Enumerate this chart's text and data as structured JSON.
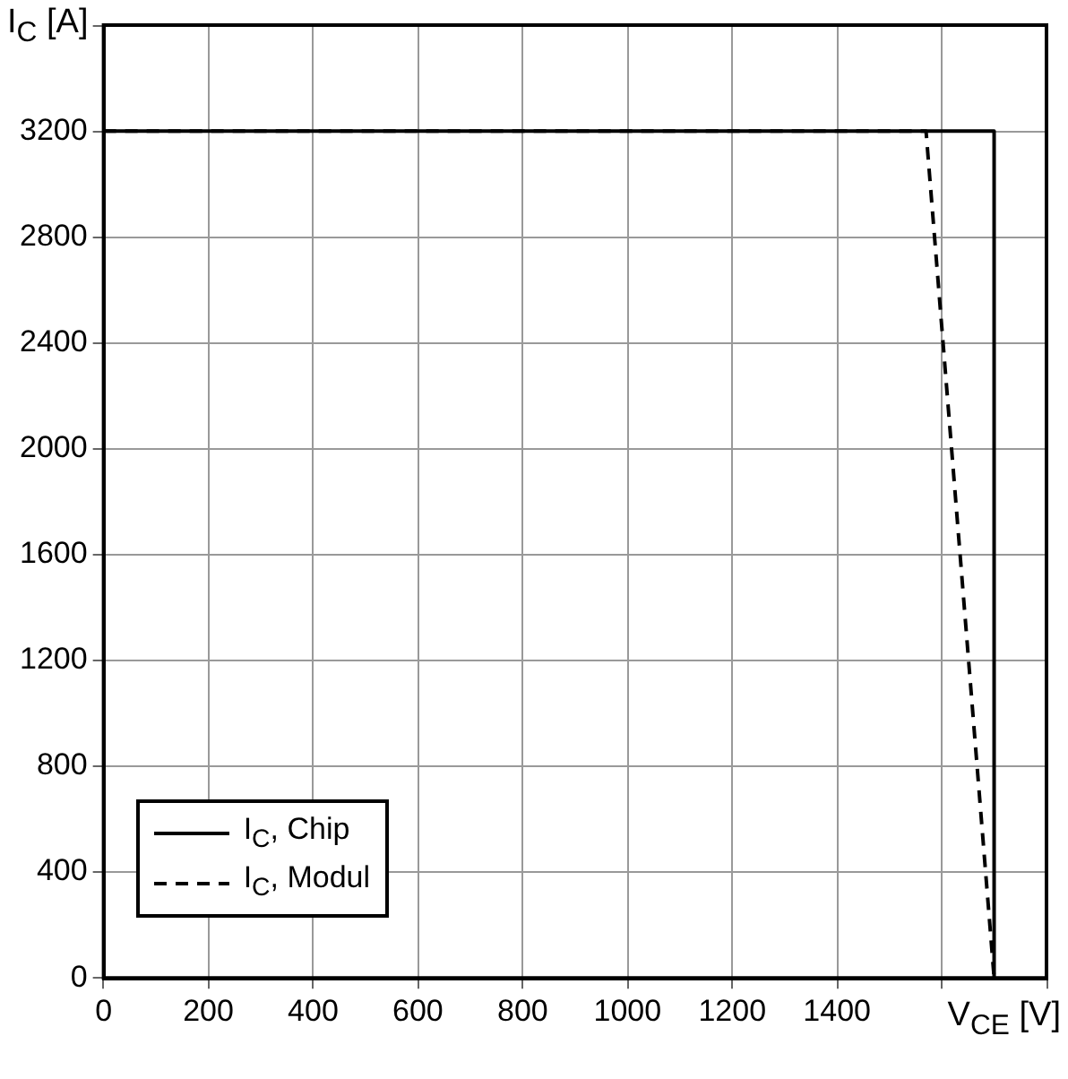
{
  "chart_data": {
    "type": "line",
    "xlabel": "V$_{CE}$ [V]",
    "ylabel": "I$_{C}$ [A]",
    "xlim": [
      0,
      1800
    ],
    "xticks": [
      0,
      200,
      400,
      600,
      800,
      1000,
      1200,
      1400,
      {
        "value": 1600,
        "label": null
      },
      {
        "value": 1800,
        "label": null
      }
    ],
    "ylim": [
      0,
      3600
    ],
    "yticks": [
      0,
      400,
      800,
      1200,
      1600,
      2000,
      2400,
      2800,
      3200,
      {
        "value": 3600,
        "label": null
      }
    ],
    "grid": true,
    "legend": "bottom left",
    "marker": "none",
    "series": [
      {
        "name": "I$_{C}$, Chip",
        "color": "#000000",
        "line_style": "solid",
        "x": [
          0,
          1700,
          1700
        ],
        "values": [
          3200,
          3200,
          0
        ]
      },
      {
        "name": "I$_{C}$, Modul",
        "color": "#000000",
        "line_style": "dashed",
        "x": [
          0,
          1570,
          1700
        ],
        "values": [
          3200,
          3200,
          0
        ]
      }
    ]
  }
}
